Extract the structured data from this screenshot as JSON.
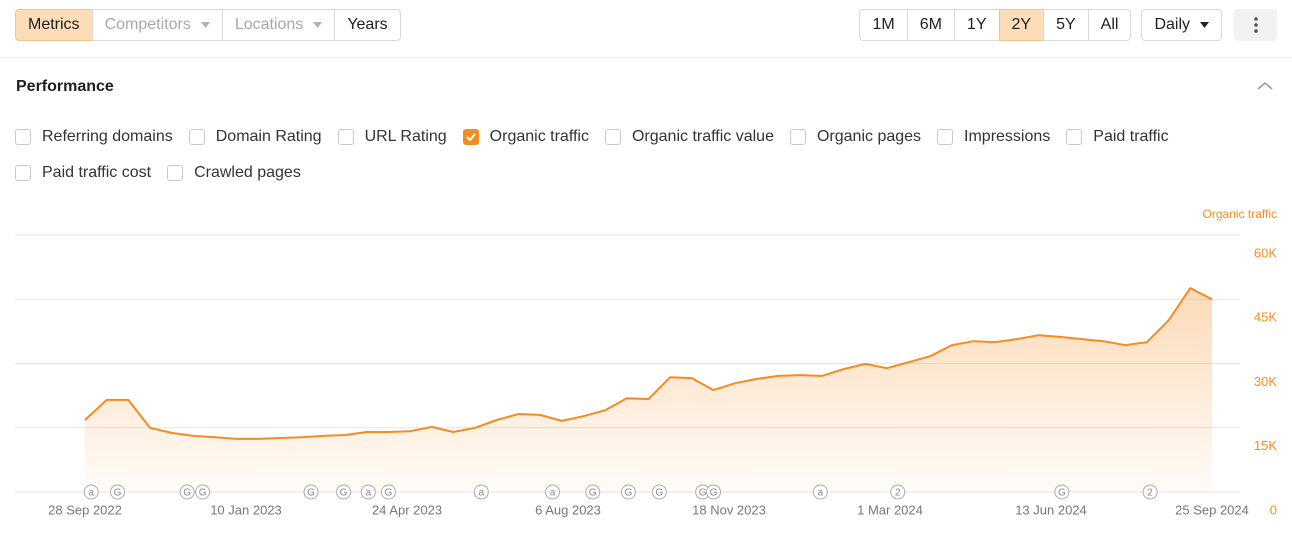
{
  "toolbar": {
    "left": [
      {
        "label": "Metrics",
        "active": true
      },
      {
        "label": "Competitors",
        "dropdown": true,
        "disabled": true
      },
      {
        "label": "Locations",
        "dropdown": true,
        "disabled": true
      },
      {
        "label": "Years"
      }
    ],
    "ranges": [
      {
        "label": "1M"
      },
      {
        "label": "6M"
      },
      {
        "label": "1Y"
      },
      {
        "label": "2Y",
        "active": true
      },
      {
        "label": "5Y"
      },
      {
        "label": "All"
      }
    ],
    "granularity": {
      "label": "Daily",
      "dropdown": true
    }
  },
  "panel": {
    "title": "Performance",
    "metrics": [
      {
        "label": "Referring domains"
      },
      {
        "label": "Domain Rating"
      },
      {
        "label": "URL Rating"
      },
      {
        "label": "Organic traffic",
        "checked": true
      },
      {
        "label": "Organic traffic value"
      },
      {
        "label": "Organic pages"
      },
      {
        "label": "Impressions"
      },
      {
        "label": "Paid traffic"
      },
      {
        "label": "Paid traffic cost"
      },
      {
        "label": "Crawled pages"
      }
    ]
  },
  "chart_data": {
    "type": "area",
    "y_axis_side": "right",
    "grid": true,
    "x": [
      "2022-09-28",
      "2022-10-12",
      "2022-10-26",
      "2022-11-09",
      "2022-11-23",
      "2022-12-07",
      "2022-12-21",
      "2023-01-04",
      "2023-01-18",
      "2023-02-01",
      "2023-02-15",
      "2023-03-01",
      "2023-03-15",
      "2023-03-29",
      "2023-04-12",
      "2023-04-26",
      "2023-05-10",
      "2023-05-24",
      "2023-06-07",
      "2023-06-21",
      "2023-07-05",
      "2023-07-19",
      "2023-08-02",
      "2023-08-16",
      "2023-08-30",
      "2023-09-13",
      "2023-09-27",
      "2023-10-11",
      "2023-10-25",
      "2023-11-08",
      "2023-11-22",
      "2023-12-06",
      "2023-12-20",
      "2024-01-03",
      "2024-01-17",
      "2024-01-31",
      "2024-02-14",
      "2024-02-28",
      "2024-03-13",
      "2024-03-27",
      "2024-04-10",
      "2024-04-24",
      "2024-05-08",
      "2024-05-22",
      "2024-06-05",
      "2024-06-19",
      "2024-07-03",
      "2024-07-17",
      "2024-07-31",
      "2024-08-14",
      "2024-08-28",
      "2024-09-11",
      "2024-09-25"
    ],
    "series": [
      {
        "name": "Organic traffic",
        "color": "#f68b1f",
        "values": [
          16800,
          21500,
          21500,
          15000,
          13800,
          13100,
          12800,
          12400,
          12400,
          12600,
          12800,
          13100,
          13300,
          14000,
          14000,
          14200,
          15200,
          14000,
          15000,
          16800,
          18200,
          18000,
          16600,
          17700,
          19100,
          21900,
          21700,
          26800,
          26600,
          23800,
          25400,
          26400,
          27100,
          27300,
          27100,
          28700,
          29900,
          28900,
          30300,
          31700,
          34300,
          35200,
          35000,
          35700,
          36600,
          36200,
          35700,
          35200,
          34300,
          35000,
          40100,
          47600,
          45000
        ]
      }
    ],
    "xlim": [
      "2022-09-28",
      "2024-09-25"
    ],
    "xticks": [
      {
        "value": "2022-09-28",
        "label": "28 Sep 2022"
      },
      {
        "value": "2023-01-10",
        "label": "10 Jan 2023"
      },
      {
        "value": "2023-04-24",
        "label": "24 Apr 2023"
      },
      {
        "value": "2023-08-06",
        "label": "6 Aug 2023"
      },
      {
        "value": "2023-11-18",
        "label": "18 Nov 2023"
      },
      {
        "value": "2024-03-01",
        "label": "1 Mar 2024"
      },
      {
        "value": "2024-06-13",
        "label": "13 Jun 2024"
      },
      {
        "value": "2024-09-25",
        "label": "25 Sep 2024"
      }
    ],
    "ylim": [
      0,
      60000
    ],
    "yticks": [
      0,
      {
        "value": 15000,
        "label": "15K"
      },
      {
        "value": 30000,
        "label": "30K"
      },
      {
        "value": 45000,
        "label": "45K"
      },
      {
        "value": 60000,
        "label": "60K"
      }
    ],
    "events": [
      {
        "x": "2022-10-02",
        "label": "a"
      },
      {
        "x": "2022-10-19",
        "label": "G"
      },
      {
        "x": "2022-12-03",
        "label": "G"
      },
      {
        "x": "2022-12-13",
        "label": "G"
      },
      {
        "x": "2023-02-21",
        "label": "G"
      },
      {
        "x": "2023-03-14",
        "label": "G"
      },
      {
        "x": "2023-03-30",
        "label": "a"
      },
      {
        "x": "2023-04-12",
        "label": "G"
      },
      {
        "x": "2023-06-11",
        "label": "a"
      },
      {
        "x": "2023-07-27",
        "label": "a"
      },
      {
        "x": "2023-08-22",
        "label": "G"
      },
      {
        "x": "2023-09-14",
        "label": "G"
      },
      {
        "x": "2023-10-04",
        "label": "G"
      },
      {
        "x": "2023-11-01",
        "label": "G"
      },
      {
        "x": "2023-11-08",
        "label": "G"
      },
      {
        "x": "2024-01-16",
        "label": "a"
      },
      {
        "x": "2024-03-06",
        "label": "2"
      },
      {
        "x": "2024-06-20",
        "label": "G"
      },
      {
        "x": "2024-08-16",
        "label": "2"
      }
    ]
  }
}
